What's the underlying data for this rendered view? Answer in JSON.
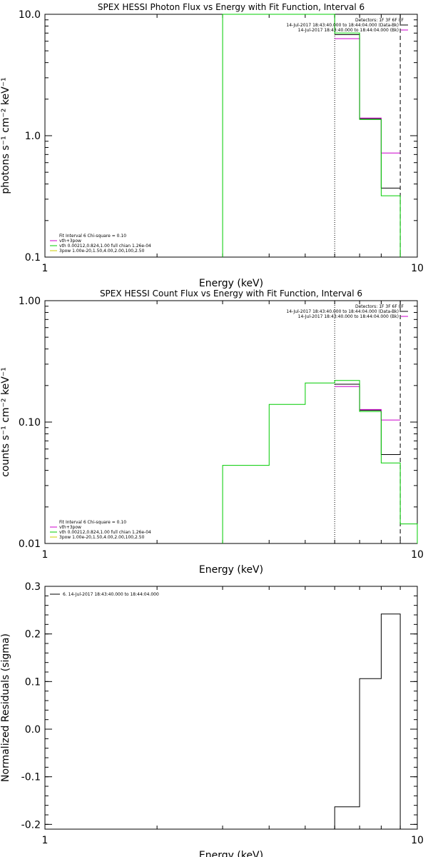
{
  "chart_data": [
    {
      "type": "line",
      "title": "SPEX HESSI Photon Flux vs Energy with Fit Function, Interval 6",
      "xlabel": "Energy (keV)",
      "ylabel": "photons s⁻¹ cm⁻² keV⁻¹",
      "xscale": "log",
      "yscale": "log",
      "xlim": [
        1,
        10
      ],
      "ylim": [
        0.1,
        10
      ],
      "x_ticks": [
        1,
        10
      ],
      "x_tick_labels": [
        "1",
        "10"
      ],
      "y_ticks": [
        0.1,
        1,
        10
      ],
      "y_tick_labels": [
        "0.1",
        "1.0",
        "10.0"
      ],
      "vlines": [
        {
          "x": 6.0,
          "style": "dotted"
        },
        {
          "x": 9.0,
          "style": "dashed"
        }
      ],
      "legend_top": [
        "Detectors: 1F 3F 6F 8F",
        "14-Jul-2017 18:43:40.000 to 18:44:04.000 (Data-Bk)",
        "14-Jul-2017 18:43:40.000 to 18:44:04.000 (Bk)"
      ],
      "legend_top_colors": [
        "#000000",
        "#cc00cc"
      ],
      "legend_bottom": [
        "Fit Interval  6    Chi-square = 0.10",
        "vth+3pow",
        "vth 0.00212,0.824,1.00  full chian 1.26e-04",
        "3pow 1.00e-20,1.50,4.00,2.00,100,2.50"
      ],
      "legend_bottom_colors": [
        "#000000",
        "#cc00cc",
        "#00cc00",
        "#cccc00"
      ],
      "series": [
        {
          "color": "#000000",
          "edges": [
            6,
            7,
            8,
            9
          ],
          "values": [
            6.8,
            1.38,
            0.37
          ]
        },
        {
          "color": "#cc00cc",
          "edges": [
            6,
            7,
            8,
            9
          ],
          "values": [
            6.3,
            1.4,
            0.72
          ]
        },
        {
          "color": "#00cc00",
          "edges": [
            3,
            6,
            7,
            8,
            9
          ],
          "values": [
            10.0,
            7.0,
            1.36,
            0.32
          ],
          "drop_to_floor": true
        }
      ]
    },
    {
      "type": "line",
      "title": "SPEX HESSI Count Flux vs Energy with Fit Function, Interval 6",
      "xlabel": "Energy (keV)",
      "ylabel": "counts s⁻¹ cm⁻² keV⁻¹",
      "xscale": "log",
      "yscale": "log",
      "xlim": [
        1,
        10
      ],
      "ylim": [
        0.01,
        1
      ],
      "x_ticks": [
        1,
        10
      ],
      "x_tick_labels": [
        "1",
        "10"
      ],
      "y_ticks": [
        0.01,
        0.1,
        1
      ],
      "y_tick_labels": [
        "0.01",
        "0.10",
        "1.00"
      ],
      "vlines": [
        {
          "x": 6.0,
          "style": "dotted"
        },
        {
          "x": 9.0,
          "style": "dashed"
        }
      ],
      "legend_top": [
        "Detectors: 1F 3F 6F 8F",
        "14-Jul-2017 18:43:40.000 to 18:44:04.000 (Data-Bk)",
        "14-Jul-2017 18:43:40.000 to 18:44:04.000 (Bk)"
      ],
      "legend_top_colors": [
        "#000000",
        "#cc00cc"
      ],
      "legend_bottom": [
        "Fit Interval  6    Chi-square = 0.10",
        "vth+3pow",
        "vth 0.00212,0.824,1.00  full chian 1.26e-04",
        "3pow 1.00e-20,1.50,4.00,2.00,100,2.50"
      ],
      "legend_bottom_colors": [
        "#000000",
        "#cc00cc",
        "#00cc00",
        "#cccc00"
      ],
      "series": [
        {
          "color": "#000000",
          "edges": [
            6,
            7,
            8,
            9
          ],
          "values": [
            0.205,
            0.125,
            0.054
          ]
        },
        {
          "color": "#cc00cc",
          "edges": [
            6,
            7,
            8,
            9
          ],
          "values": [
            0.196,
            0.127,
            0.104
          ]
        },
        {
          "color": "#00cc00",
          "edges": [
            3,
            4,
            5,
            6,
            7,
            8,
            9,
            10
          ],
          "values": [
            0.044,
            0.14,
            0.21,
            0.22,
            0.122,
            0.046,
            0.0145
          ],
          "drop_to_floor": true
        }
      ]
    },
    {
      "type": "line",
      "title": "",
      "xlabel": "Energy (keV)",
      "ylabel": "Normalized Residuals (sigma)",
      "xscale": "log",
      "yscale": "linear",
      "xlim": [
        1,
        10
      ],
      "ylim": [
        -0.21,
        0.3
      ],
      "x_ticks": [
        1,
        10
      ],
      "x_tick_labels": [
        "1",
        "10"
      ],
      "y_ticks": [
        -0.2,
        -0.1,
        0.0,
        0.1,
        0.2,
        0.3
      ],
      "y_tick_labels": [
        "-0.2",
        "-0.1",
        "0.0",
        "0.1",
        "0.2",
        "0.3"
      ],
      "vlines": [],
      "legend_top": [],
      "legend_top_colors": [],
      "legend_bottom": [],
      "legend_bottom_colors": [],
      "legend_resid": "6. 14-Jul-2017 18:43:40.000 to 18:44:04.000",
      "series": [
        {
          "color": "#000000",
          "edges": [
            6,
            7,
            8,
            9
          ],
          "values": [
            -0.163,
            0.106,
            0.242
          ],
          "drop_to_floor": true
        }
      ]
    }
  ]
}
